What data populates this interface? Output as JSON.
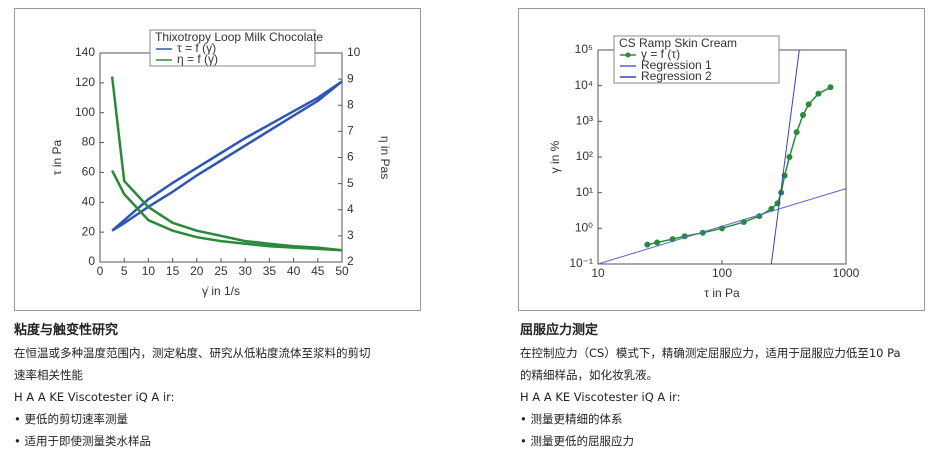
{
  "chart_data": [
    {
      "type": "line",
      "title": "Thixotropy Loop Milk Chocolate",
      "xlabel": "γ̇ in 1/s",
      "ylabel": "τ in Pa",
      "y2label": "η in Pas",
      "x": [
        2.5,
        5,
        10,
        15,
        20,
        25,
        30,
        35,
        40,
        45,
        50,
        45,
        40,
        35,
        30,
        25,
        20,
        15,
        10,
        5,
        2.5
      ],
      "xlim": [
        0,
        50
      ],
      "xticks": [
        0,
        5,
        10,
        15,
        20,
        25,
        30,
        35,
        40,
        45,
        50
      ],
      "ylim": [
        0,
        140
      ],
      "yticks": [
        0,
        20,
        40,
        60,
        80,
        100,
        120,
        140
      ],
      "y2lim": [
        2,
        10
      ],
      "y2ticks": [
        2,
        3,
        4,
        5,
        6,
        7,
        8,
        9,
        10
      ],
      "legend": "top",
      "grid": false,
      "series": [
        {
          "name": "τ = f (γ̇)",
          "color": "#2f55b5",
          "values": [
            21,
            28,
            42,
            53,
            63,
            73,
            83,
            92,
            101,
            110,
            121,
            108,
            98,
            88,
            78,
            68,
            58,
            47,
            37,
            26,
            21
          ]
        },
        {
          "name": "η = f (γ̇)",
          "color": "#2a8a3a",
          "axis": "y2",
          "values": [
            9.1,
            5.1,
            4.1,
            3.5,
            3.2,
            3.0,
            2.8,
            2.7,
            2.6,
            2.55,
            2.45,
            2.5,
            2.55,
            2.6,
            2.7,
            2.8,
            2.95,
            3.2,
            3.6,
            4.6,
            5.5
          ]
        }
      ]
    },
    {
      "type": "line",
      "title": "CS Ramp Skin Cream",
      "xlabel": "τ in Pa",
      "ylabel": "γ in %",
      "xscale": "log",
      "yscale": "log",
      "xlim": [
        10,
        1000
      ],
      "xticks": [
        10,
        100,
        1000
      ],
      "ylim": [
        0.1,
        100000
      ],
      "yticks": [
        {
          "value": 0.1,
          "label": "10⁻¹"
        },
        {
          "value": 1,
          "label": "10⁰"
        },
        {
          "value": 10,
          "label": "10¹"
        },
        {
          "value": 100,
          "label": "10²"
        },
        {
          "value": 1000,
          "label": "10³"
        },
        {
          "value": 10000,
          "label": "10⁴"
        },
        {
          "value": 100000,
          "label": "10⁵"
        }
      ],
      "legend": "top",
      "grid": false,
      "series": [
        {
          "name": "γ = f (τ)",
          "color": "#2a8a3a",
          "marker": true,
          "x": [
            25,
            30,
            40,
            50,
            70,
            100,
            150,
            200,
            250,
            280,
            300,
            320,
            350,
            400,
            450,
            500,
            600,
            750
          ],
          "values": [
            0.35,
            0.4,
            0.5,
            0.6,
            0.75,
            1.0,
            1.5,
            2.2,
            3.5,
            5,
            10,
            30,
            100,
            500,
            1500,
            3000,
            6000,
            9000
          ]
        },
        {
          "name": "Regression 1",
          "color": "#5566cc",
          "x": [
            10,
            1000
          ],
          "values": [
            0.1,
            13
          ]
        },
        {
          "name": "Regression 2",
          "color": "#3344bb",
          "x": [
            250,
            420
          ],
          "values": [
            0.1,
            100000
          ]
        }
      ]
    }
  ],
  "sections": [
    {
      "title": "粘度与触变性研究",
      "description": "在恒温或多种温度范围内，测定粘度、研究从低粘度流体至浆料的剪切速率相关性能",
      "product": "H A A KE Viscotester iQ A ir:",
      "bullets": [
        "更低的剪切速率测量",
        "适用于即使测量类水样品"
      ]
    },
    {
      "title": "屈服应力测定",
      "description": "在控制应力（CS）模式下，精确测定屈服应力，适用于屈服应力低至10 Pa的精细样品，如化妆乳液。",
      "product": "H A A KE Viscotester iQ A ir:",
      "bullets": [
        "测量更精细的体系",
        "测量更低的屈服应力"
      ]
    }
  ]
}
